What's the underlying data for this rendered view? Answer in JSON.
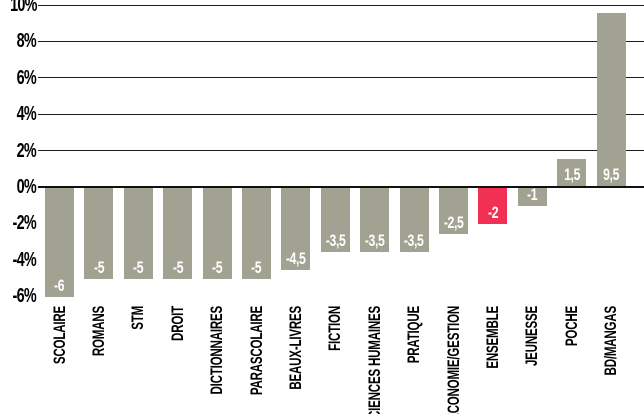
{
  "chart_data": {
    "type": "bar",
    "title": "",
    "categories": [
      "SCOLAIRE",
      "ROMANS",
      "STM",
      "DROIT",
      "DICTIONNAIRES",
      "PARASCOLAIRE",
      "BEAUX-LIVRES",
      "FICTION",
      "SCIENCES HUMAINES",
      "PRATIQUE",
      "ECONOMIE/GESTION",
      "ENSEMBLE",
      "JEUNESSE",
      "POCHE",
      "BD/MANGAS"
    ],
    "values": [
      -6,
      -5,
      -5,
      -5,
      -5,
      -5,
      -4.5,
      -3.5,
      -3.5,
      -3.5,
      -2.5,
      -2,
      -1,
      1.5,
      9.5
    ],
    "value_labels": [
      "-6",
      "-5",
      "-5",
      "-5",
      "-5",
      "-5",
      "-4,5",
      "-3,5",
      "-3,5",
      "-3,5",
      "-2,5",
      "-2",
      "-1",
      "1,5",
      "9,5"
    ],
    "highlight_category": "ENSEMBLE",
    "highlight_index": 11,
    "xlabel": "",
    "ylabel": "",
    "ylim": [
      -6,
      10
    ],
    "y_axis": {
      "unit": "%",
      "tick_values": [
        10,
        8,
        6,
        4,
        2,
        0,
        -2,
        -4,
        -6
      ],
      "tick_labels": [
        "10%",
        "8%",
        "6%",
        "4%",
        "2%",
        "0%",
        "-2%",
        "-4%",
        "-6%"
      ],
      "gridline_values": [
        10,
        8,
        6,
        4,
        2
      ],
      "zero_line": true
    },
    "legend": {
      "visible": false
    },
    "grid": "horizontal-above-zero-only",
    "colors": {
      "bar": "#a2a293",
      "highlight": "#f23054",
      "value_label_text": "#ffffff",
      "axis_text": "#000000",
      "gridline": "#1c1c1c",
      "zero_line": "#111111",
      "background": "#ffffff"
    }
  }
}
